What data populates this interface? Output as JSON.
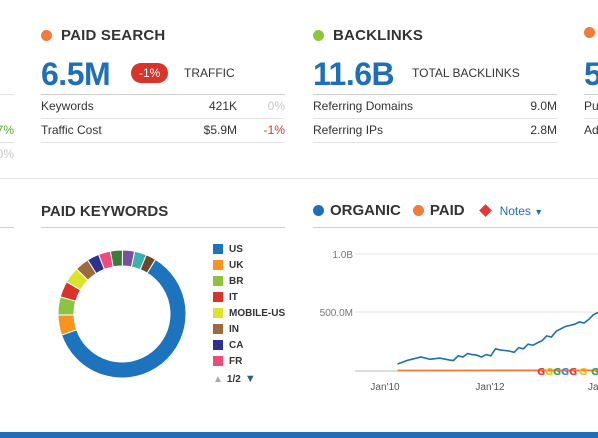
{
  "left_partial": {
    "v1": "7%",
    "v2": "0%"
  },
  "paid_search": {
    "title": "PAID SEARCH",
    "dot_color": "#f07b3a",
    "value": "6.5M",
    "badge": "-1%",
    "sub_label": "TRAFFIC",
    "rows": [
      {
        "label": "Keywords",
        "value": "421K",
        "change": "0%"
      },
      {
        "label": "Traffic Cost",
        "value": "$5.9M",
        "change": "-1%"
      }
    ]
  },
  "backlinks": {
    "title": "BACKLINKS",
    "dot_color": "#8cc43f",
    "value": "11.6B",
    "sub_label": "TOTAL BACKLINKS",
    "rows": [
      {
        "label": "Referring Domains",
        "value": "9.0M"
      },
      {
        "label": "Referring IPs",
        "value": "2.8M"
      }
    ]
  },
  "right_partial": {
    "dot_color": "#f07b3a",
    "value": "5",
    "row1": "Pu",
    "row2": "Ad"
  },
  "paid_keywords": {
    "title": "PAID KEYWORDS",
    "legend": [
      {
        "label": "US",
        "color": "#1e73be"
      },
      {
        "label": "UK",
        "color": "#f7941d"
      },
      {
        "label": "BR",
        "color": "#8cc43f"
      },
      {
        "label": "IT",
        "color": "#d9342b"
      },
      {
        "label": "MOBILE-US",
        "color": "#dbe32b"
      },
      {
        "label": "IN",
        "color": "#9b6b3e"
      },
      {
        "label": "CA",
        "color": "#2e3192"
      },
      {
        "label": "FR",
        "color": "#ee4b7d"
      }
    ],
    "page": "1/2",
    "chart_data": {
      "type": "pie",
      "donut": true,
      "slices": [
        {
          "label": "US",
          "value": 60,
          "color": "#1e73be"
        },
        {
          "label": "UK",
          "value": 5,
          "color": "#f7941d"
        },
        {
          "label": "BR",
          "value": 4.5,
          "color": "#8cc43f"
        },
        {
          "label": "IT",
          "value": 4,
          "color": "#d9342b"
        },
        {
          "label": "MOBILE-US",
          "value": 4,
          "color": "#dbe32b"
        },
        {
          "label": "IN",
          "value": 3.5,
          "color": "#9b6b3e"
        },
        {
          "label": "CA",
          "value": 3,
          "color": "#2e3192"
        },
        {
          "label": "FR",
          "value": 3,
          "color": "#ee4b7d"
        },
        {
          "label": "other-1",
          "value": 3,
          "color": "#3a7d3a"
        },
        {
          "label": "other-2",
          "value": 3,
          "color": "#7b4fa0"
        },
        {
          "label": "other-3",
          "value": 3,
          "color": "#3fb0b0"
        },
        {
          "label": "other-4",
          "value": 2.5,
          "color": "#6b4a2b"
        }
      ]
    }
  },
  "trend": {
    "legend": [
      {
        "label": "ORGANIC",
        "color": "#1e6fb8"
      },
      {
        "label": "PAID",
        "color": "#f07b3a"
      }
    ],
    "notes_label": "Notes",
    "notes_color": "#e53935",
    "chart_data": {
      "type": "line",
      "y_ticks": [
        "1.0B",
        "500.0M"
      ],
      "x_ticks": [
        "Jan'10",
        "Jan'12",
        "Jan"
      ],
      "ylim": [
        0,
        1000000000
      ],
      "series": [
        {
          "name": "ORGANIC",
          "color": "#1e6fb8",
          "x": [
            2009.7,
            2009.9,
            2010.0,
            2010.2,
            2010.4,
            2010.6,
            2010.8,
            2010.9,
            2011.0,
            2011.1,
            2011.2,
            2011.3,
            2011.4,
            2011.5,
            2011.6,
            2011.7,
            2011.8,
            2011.9,
            2012.0,
            2012.1,
            2012.2,
            2012.3,
            2012.4,
            2012.5,
            2012.6,
            2012.7,
            2012.8,
            2012.9,
            2013.0,
            2013.1,
            2013.2,
            2013.3,
            2013.4,
            2013.5,
            2013.6,
            2013.7,
            2013.8,
            2013.9,
            2014.0
          ],
          "values": [
            60,
            90,
            100,
            120,
            100,
            110,
            95,
            90,
            130,
            120,
            150,
            140,
            135,
            120,
            140,
            130,
            190,
            180,
            175,
            170,
            160,
            200,
            190,
            230,
            220,
            240,
            260,
            300,
            290,
            340,
            360,
            380,
            390,
            400,
            420,
            410,
            440,
            480,
            500
          ]
        },
        {
          "name": "PAID",
          "color": "#f07b3a",
          "x": [
            2009.7,
            2010.0,
            2011.0,
            2012.0,
            2013.0,
            2014.0
          ],
          "values": [
            5,
            5,
            5,
            6,
            6,
            6
          ]
        }
      ]
    }
  }
}
